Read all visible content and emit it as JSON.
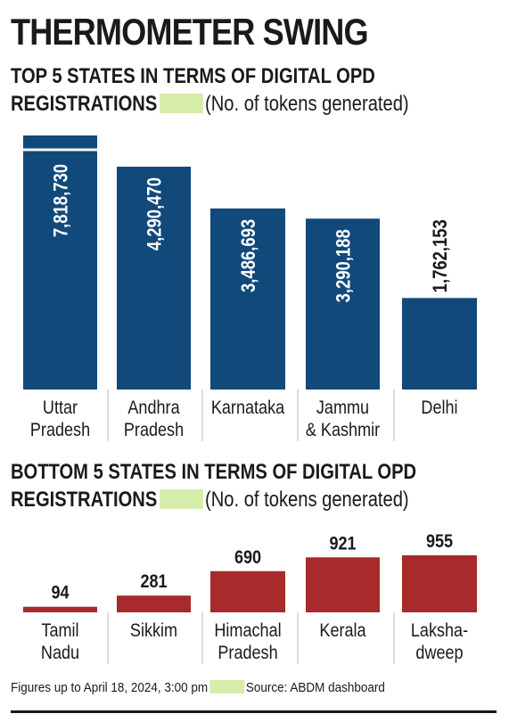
{
  "title": "THERMOMETER SWING",
  "top_subtitle_line1": "TOP 5 STATES IN TERMS OF DIGITAL OPD",
  "top_subtitle_line2": "REGISTRATIONS",
  "bottom_subtitle_line1": "BOTTOM 5 STATES IN TERMS OF DIGITAL OPD",
  "bottom_subtitle_line2": "REGISTRATIONS",
  "unit_label": "(No. of tokens generated)",
  "footer_note": "Figures up to April 18, 2024, 3:00 pm",
  "footer_source": "Source: ABDM dashboard",
  "colors": {
    "top_bar": "#12497b",
    "bottom_bar": "#a82a2a",
    "swatch": "#d6edaa",
    "text": "#1a1a1a"
  },
  "chart_data": [
    {
      "type": "bar",
      "title": "TOP 5 STATES IN TERMS OF DIGITAL OPD REGISTRATIONS",
      "ylabel": "No. of tokens generated",
      "categories": [
        [
          "Uttar",
          "Pradesh"
        ],
        [
          "Andhra",
          "Pradesh"
        ],
        [
          "Karnataka"
        ],
        [
          "Jammu",
          "& Kashmir"
        ],
        [
          "Delhi"
        ]
      ],
      "values": [
        7818730,
        4290470,
        3486693,
        3290188,
        1762153
      ],
      "labels": [
        "7,818,730",
        "4,290,470",
        "3,486,693",
        "3,290,188",
        "1,762,153"
      ],
      "broken_axis_first_bar": true,
      "label_orientation": "vertical"
    },
    {
      "type": "bar",
      "title": "BOTTOM 5 STATES IN TERMS OF DIGITAL OPD REGISTRATIONS",
      "ylabel": "No. of tokens generated",
      "categories": [
        [
          "Tamil",
          "Nadu"
        ],
        [
          "Sikkim"
        ],
        [
          "Himachal",
          "Pradesh"
        ],
        [
          "Kerala"
        ],
        [
          "Laksha-",
          "dweep"
        ]
      ],
      "values": [
        94,
        281,
        690,
        921,
        955
      ],
      "labels": [
        "94",
        "281",
        "690",
        "921",
        "955"
      ],
      "label_orientation": "horizontal"
    }
  ]
}
